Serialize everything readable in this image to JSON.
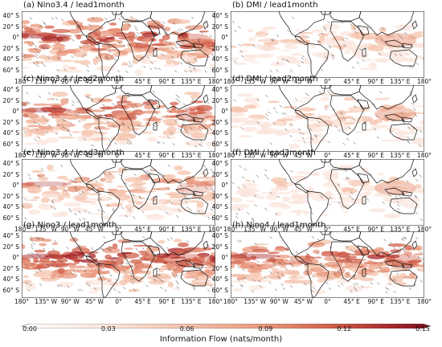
{
  "panels": [
    {
      "title": "(a) Nino3.4 / lead1month",
      "intensity": 0.85
    },
    {
      "title": "(b) DMI / lead1month",
      "intensity": 0.35
    },
    {
      "title": "(c) Nino3.4 / lead2month",
      "intensity": 0.75
    },
    {
      "title": "(d) DMI / lead2month",
      "intensity": 0.4
    },
    {
      "title": "(e) Nino3.4 / lead3month",
      "intensity": 0.55
    },
    {
      "title": "(f) DMI / lead3month",
      "intensity": 0.3
    },
    {
      "title": "(g) Nino3 / lead1month",
      "intensity": 0.9
    },
    {
      "title": "(h) Nino4 / lead1month",
      "intensity": 0.8
    }
  ],
  "lat_ticks": [
    "40° S",
    "20° S",
    "0°",
    "20° S",
    "40° S",
    "60° S"
  ],
  "lon_ticks": [
    "180°",
    "135° W",
    "90° W",
    "45° W",
    "0°",
    "45° E",
    "90° E",
    "135° E",
    "180°"
  ],
  "colorbar": {
    "ticks": [
      "0.00",
      "0.03",
      "0.06",
      "0.09",
      "0.12",
      "0.15"
    ],
    "label": "Information Flow (nats/month)",
    "range": [
      0.0,
      0.15
    ],
    "colors": [
      "#ffffff",
      "#fbe6dc",
      "#f4c3ac",
      "#e8977c",
      "#d2604c",
      "#a8282b",
      "#7a0d1d"
    ]
  }
}
